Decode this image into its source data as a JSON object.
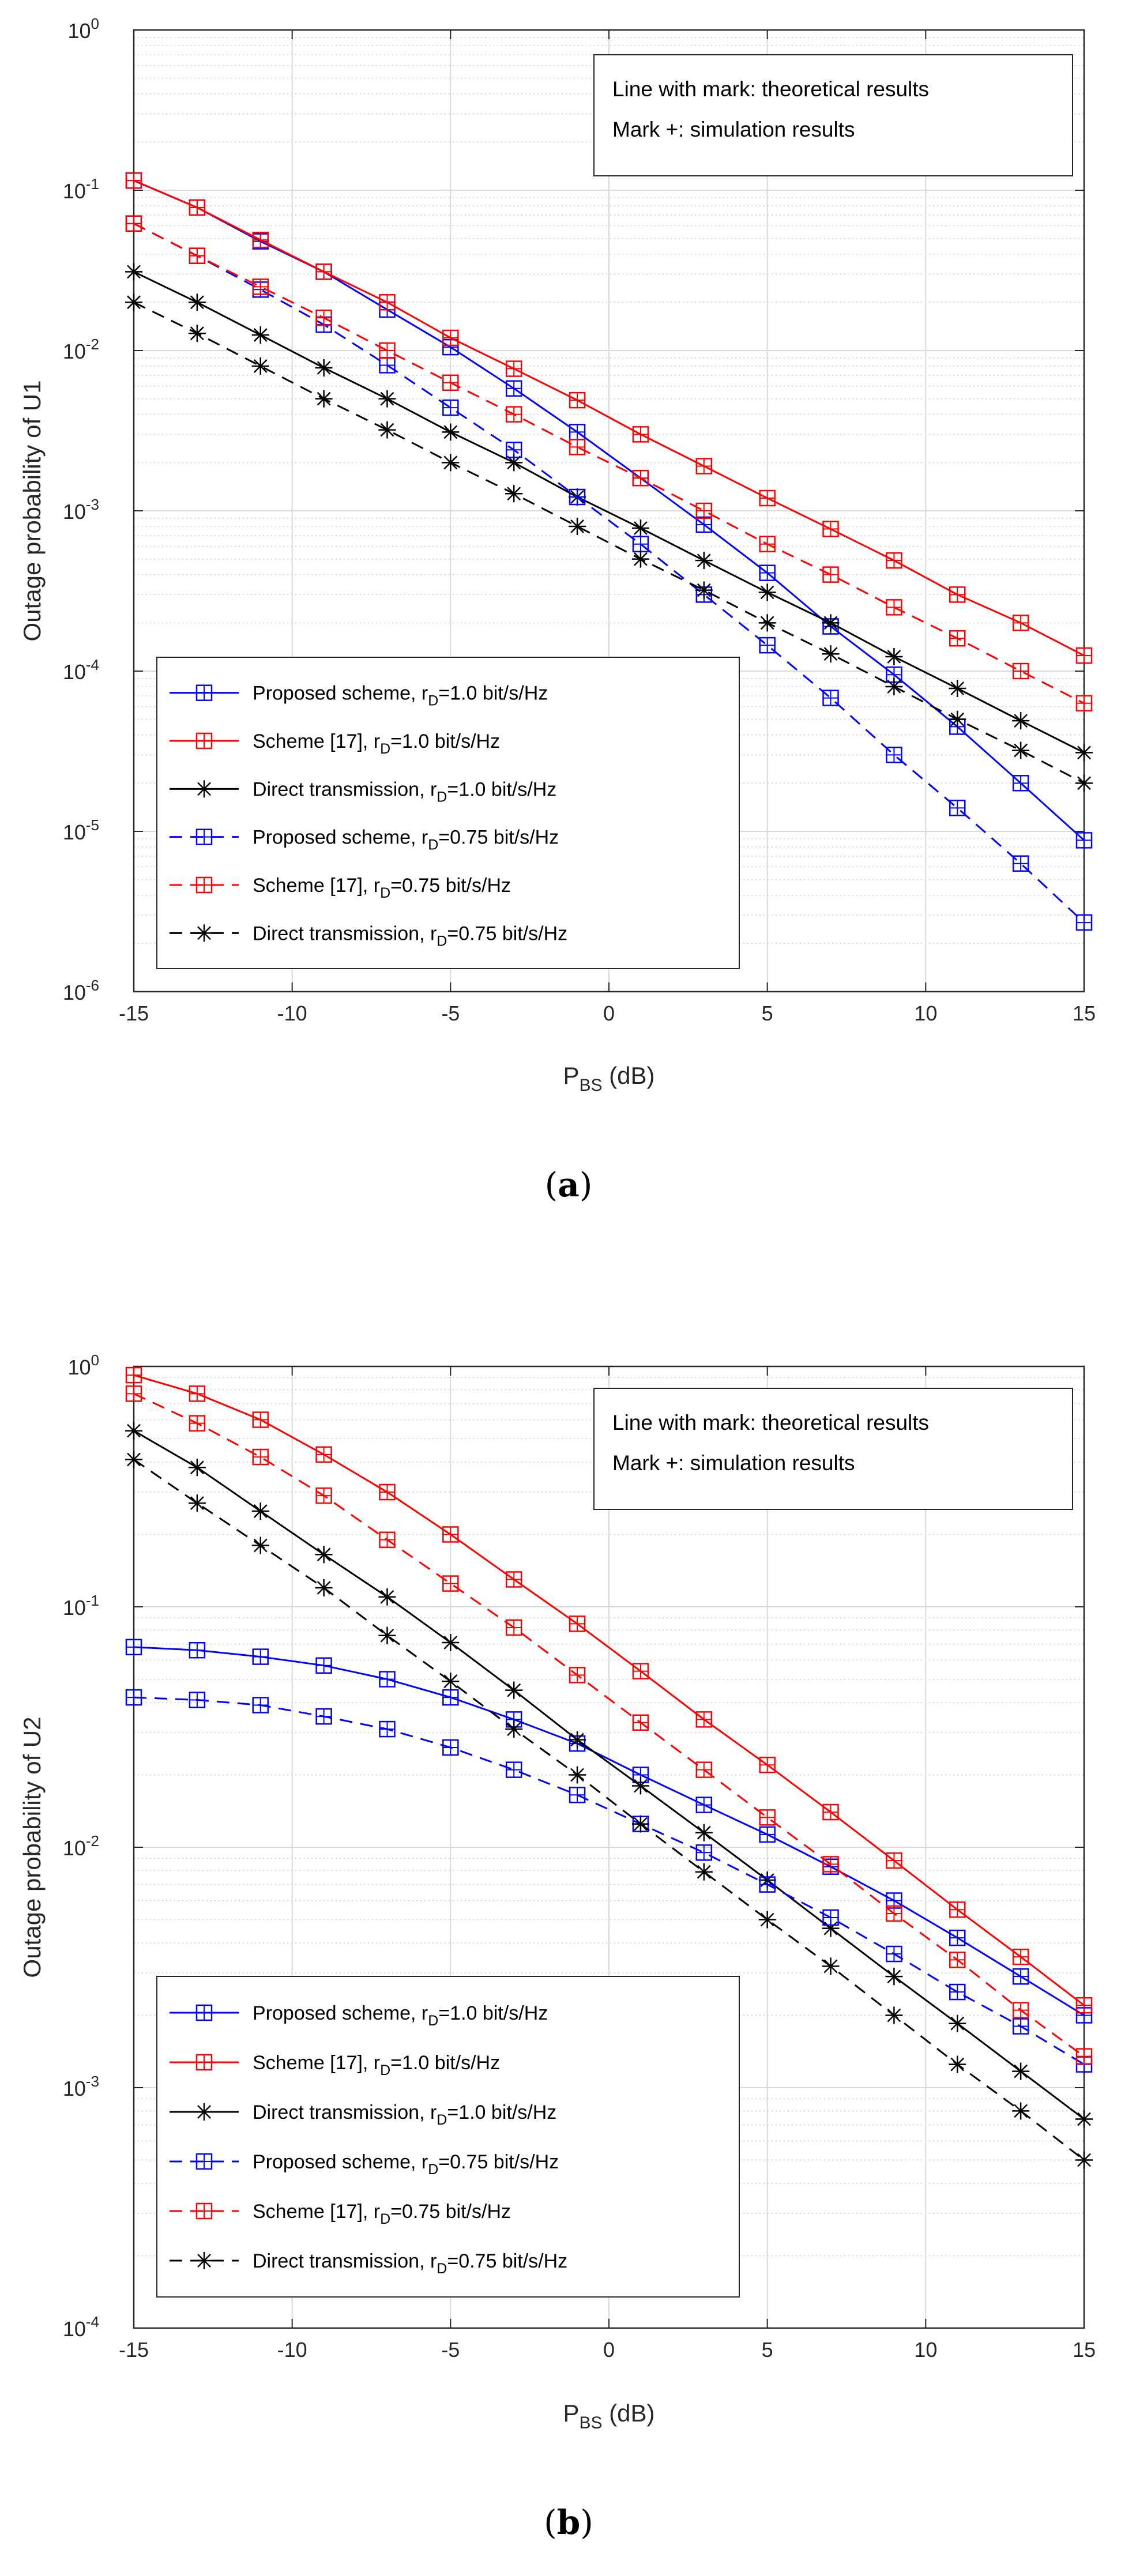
{
  "chart_data": [
    {
      "type": "line",
      "caption_letter": "a",
      "caption_open": "(",
      "caption_close": ")",
      "yscale": "log",
      "xlabel_main": "P",
      "xlabel_sub": "BS",
      "xlabel_unit": " (dB)",
      "ylabel": "Outage probability of U1",
      "xlim": [
        -15,
        15
      ],
      "ylim": [
        1e-06,
        1
      ],
      "x_ticks": [
        -15,
        -10,
        -5,
        0,
        5,
        10,
        15
      ],
      "y_tick_exponents": [
        "0",
        "-1",
        "-2",
        "-3",
        "-4",
        "-5",
        "-6"
      ],
      "grid": true,
      "annotation": [
        "Line with mark: theoretical results",
        "Mark +: simulation results"
      ],
      "annotation_position": "top-right",
      "legend_position": "bottom-left",
      "x": [
        -15,
        -13,
        -11,
        -9,
        -7,
        -5,
        -3,
        -1,
        1,
        3,
        5,
        7,
        9,
        11,
        13,
        15
      ],
      "series": [
        {
          "name": "Proposed scheme, r_D=1.0 bit/s/Hz",
          "label_pre": "Proposed scheme, r",
          "label_sub": "D",
          "label_post": "=1.0 bit/s/Hz",
          "color": "#0000ff",
          "dash": "solid",
          "marker": "square",
          "values": [
            0.115,
            0.078,
            0.048,
            0.031,
            0.018,
            0.0105,
            0.0058,
            0.0031,
            0.0016,
            0.00082,
            0.00041,
            0.00019,
            9.5e-05,
            4.5e-05,
            2e-05,
            8.8e-06
          ]
        },
        {
          "name": "Scheme [17], r_D=1.0 bit/s/Hz",
          "label_pre": "Scheme [17], r",
          "label_sub": "D",
          "label_post": "=1.0 bit/s/Hz",
          "color": "#ff0000",
          "dash": "solid",
          "marker": "square",
          "values": [
            0.115,
            0.078,
            0.049,
            0.031,
            0.02,
            0.012,
            0.0077,
            0.0049,
            0.003,
            0.0019,
            0.0012,
            0.00077,
            0.00049,
            0.0003,
            0.0002,
            0.000125
          ]
        },
        {
          "name": "Direct transmission, r_D=1.0 bit/s/Hz",
          "label_pre": "Direct transmission, r",
          "label_sub": "D",
          "label_post": "=1.0 bit/s/Hz",
          "color": "#000000",
          "dash": "solid",
          "marker": "star",
          "values": [
            0.031,
            0.02,
            0.0125,
            0.0078,
            0.005,
            0.0031,
            0.002,
            0.00122,
            0.00078,
            0.00049,
            0.00031,
            0.0002,
            0.000123,
            7.8e-05,
            4.9e-05,
            3.1e-05
          ]
        },
        {
          "name": "Proposed scheme, r_D=0.75 bit/s/Hz",
          "label_pre": "Proposed scheme, r",
          "label_sub": "D",
          "label_post": "=0.75 bit/s/Hz",
          "color": "#0000ff",
          "dash": "dashed",
          "marker": "square",
          "values": [
            0.062,
            0.039,
            0.024,
            0.0145,
            0.0081,
            0.0044,
            0.0024,
            0.00122,
            0.00062,
            0.0003,
            0.000145,
            6.8e-05,
            3e-05,
            1.4e-05,
            6.3e-06,
            2.7e-06
          ]
        },
        {
          "name": "Scheme [17], r_D=0.75 bit/s/Hz",
          "label_pre": "Scheme [17], r",
          "label_sub": "D",
          "label_post": "=0.75 bit/s/Hz",
          "color": "#ff0000",
          "dash": "dashed",
          "marker": "square",
          "values": [
            0.062,
            0.039,
            0.025,
            0.016,
            0.01,
            0.0063,
            0.004,
            0.0025,
            0.0016,
            0.001,
            0.00062,
            0.0004,
            0.00025,
            0.00016,
            0.0001,
            6.3e-05
          ]
        },
        {
          "name": "Direct transmission, r_D=0.75 bit/s/Hz",
          "label_pre": "Direct transmission, r",
          "label_sub": "D",
          "label_post": "=0.75 bit/s/Hz",
          "color": "#000000",
          "dash": "dashed",
          "marker": "star",
          "values": [
            0.02,
            0.0128,
            0.008,
            0.005,
            0.0032,
            0.002,
            0.00128,
            0.0008,
            0.0005,
            0.00032,
            0.0002,
            0.000128,
            8e-05,
            5e-05,
            3.2e-05,
            2e-05
          ]
        }
      ]
    },
    {
      "type": "line",
      "caption_letter": "b",
      "caption_open": "(",
      "caption_close": ")",
      "yscale": "log",
      "xlabel_main": "P",
      "xlabel_sub": "BS",
      "xlabel_unit": " (dB)",
      "ylabel": "Outage probability of U2",
      "xlim": [
        -15,
        15
      ],
      "ylim": [
        0.0001,
        1
      ],
      "x_ticks": [
        -15,
        -10,
        -5,
        0,
        5,
        10,
        15
      ],
      "y_tick_exponents": [
        "0",
        "-1",
        "-2",
        "-3",
        "-4"
      ],
      "grid": true,
      "annotation": [
        "Line with mark: theoretical results",
        "Mark +: simulation results"
      ],
      "annotation_position": "top-right",
      "legend_position": "bottom-left",
      "x": [
        -15,
        -13,
        -11,
        -9,
        -7,
        -5,
        -3,
        -1,
        1,
        3,
        5,
        7,
        9,
        11,
        13,
        15
      ],
      "series": [
        {
          "name": "Proposed scheme, r_D=1.0 bit/s/Hz",
          "label_pre": "Proposed scheme, r",
          "label_sub": "D",
          "label_post": "=1.0 bit/s/Hz",
          "color": "#0000ff",
          "dash": "solid",
          "marker": "square",
          "values": [
            0.068,
            0.066,
            0.062,
            0.057,
            0.05,
            0.042,
            0.034,
            0.027,
            0.02,
            0.015,
            0.0113,
            0.0083,
            0.006,
            0.0042,
            0.0029,
            0.002
          ]
        },
        {
          "name": "Scheme [17], r_D=1.0 bit/s/Hz",
          "label_pre": "Scheme [17], r",
          "label_sub": "D",
          "label_post": "=1.0 bit/s/Hz",
          "color": "#ff0000",
          "dash": "solid",
          "marker": "square",
          "values": [
            0.92,
            0.77,
            0.6,
            0.43,
            0.3,
            0.2,
            0.13,
            0.085,
            0.054,
            0.034,
            0.022,
            0.014,
            0.0088,
            0.0055,
            0.0035,
            0.0022
          ]
        },
        {
          "name": "Direct transmission, r_D=1.0 bit/s/Hz",
          "label_pre": "Direct transmission, r",
          "label_sub": "D",
          "label_post": "=1.0 bit/s/Hz",
          "color": "#000000",
          "dash": "solid",
          "marker": "star",
          "values": [
            0.54,
            0.38,
            0.25,
            0.165,
            0.11,
            0.071,
            0.045,
            0.028,
            0.018,
            0.0115,
            0.0073,
            0.0046,
            0.0029,
            0.00185,
            0.00117,
            0.00074
          ]
        },
        {
          "name": "Proposed scheme, r_D=0.75 bit/s/Hz",
          "label_pre": "Proposed scheme, r",
          "label_sub": "D",
          "label_post": "=0.75 bit/s/Hz",
          "color": "#0000ff",
          "dash": "dashed",
          "marker": "square",
          "values": [
            0.042,
            0.041,
            0.039,
            0.035,
            0.031,
            0.026,
            0.021,
            0.0165,
            0.0125,
            0.0095,
            0.007,
            0.0051,
            0.0036,
            0.0025,
            0.0018,
            0.00125
          ]
        },
        {
          "name": "Scheme [17], r_D=0.75 bit/s/Hz",
          "label_pre": "Scheme [17], r",
          "label_sub": "D",
          "label_post": "=0.75 bit/s/Hz",
          "color": "#ff0000",
          "dash": "dashed",
          "marker": "square",
          "values": [
            0.77,
            0.58,
            0.42,
            0.29,
            0.19,
            0.125,
            0.082,
            0.052,
            0.033,
            0.021,
            0.0133,
            0.0085,
            0.0053,
            0.0034,
            0.0021,
            0.00135
          ]
        },
        {
          "name": "Direct transmission, r_D=0.75 bit/s/Hz",
          "label_pre": "Direct transmission, r",
          "label_sub": "D",
          "label_post": "=0.75 bit/s/Hz",
          "color": "#000000",
          "dash": "dashed",
          "marker": "star",
          "values": [
            0.41,
            0.27,
            0.18,
            0.12,
            0.076,
            0.049,
            0.031,
            0.02,
            0.0125,
            0.0079,
            0.005,
            0.0032,
            0.002,
            0.00125,
            0.0008,
            0.0005
          ]
        }
      ]
    }
  ]
}
